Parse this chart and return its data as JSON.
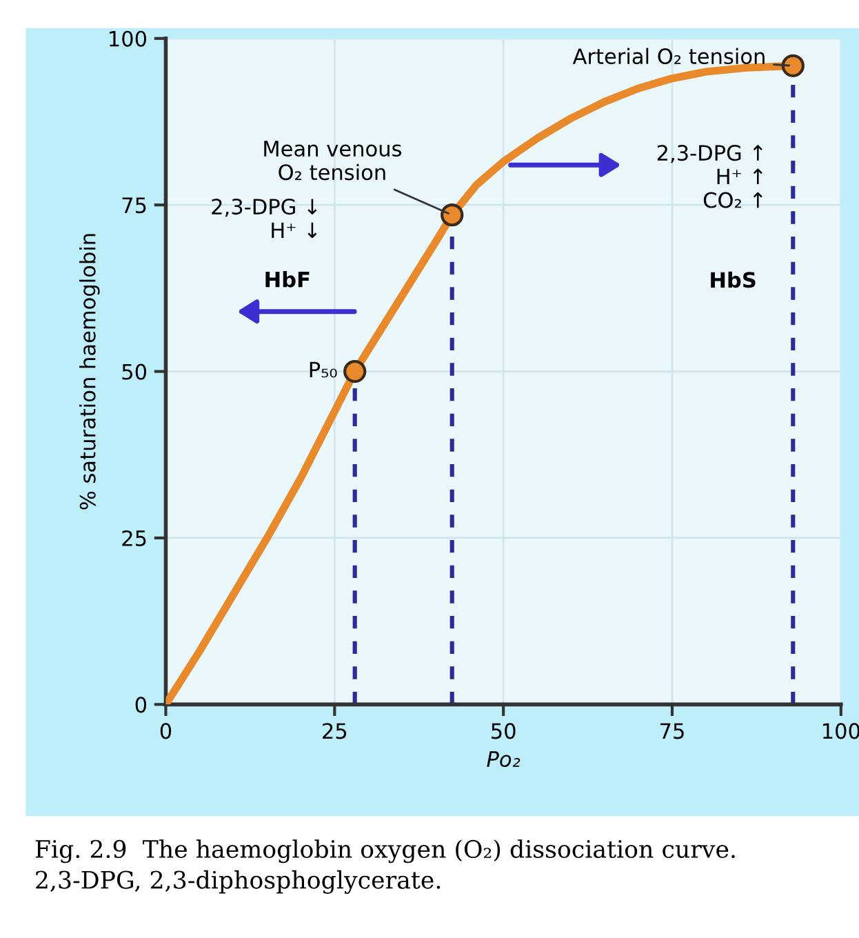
{
  "chart_data": {
    "type": "line",
    "xlabel": "Po₂",
    "ylabel": "% saturation haemoglobin",
    "xlim": [
      0,
      100
    ],
    "ylim": [
      0,
      100
    ],
    "xticks": [
      0,
      25,
      50,
      75,
      100
    ],
    "yticks": [
      0,
      25,
      50,
      75,
      100
    ],
    "grid": true,
    "series": [
      {
        "color": "#e8892b",
        "x": [
          0,
          5,
          10,
          15,
          20,
          25,
          28,
          32,
          36,
          40,
          42.4,
          46,
          50,
          55,
          60,
          65,
          70,
          75,
          80,
          86,
          92.9
        ],
        "values": [
          0,
          8,
          16.5,
          25,
          34,
          44,
          50,
          56.5,
          63,
          69.5,
          73.5,
          78,
          81.5,
          85,
          88,
          90.5,
          92.5,
          94,
          95,
          95.6,
          95.9
        ],
        "marker": "none",
        "line_style": "solid"
      },
      {
        "type": "scatter",
        "color": "#e8892b",
        "x": [
          28,
          42.4,
          92.9
        ],
        "values": [
          50,
          73.5,
          95.9
        ],
        "marker": "circle"
      }
    ],
    "ref_lines": [
      {
        "axis": "x",
        "value": 28,
        "color": "#2b2b9a",
        "line_style": "dashed"
      },
      {
        "axis": "x",
        "value": 42.4,
        "color": "#2b2b9a",
        "line_style": "dashed"
      },
      {
        "axis": "x",
        "value": 92.9,
        "color": "#2b2b9a",
        "line_style": "dashed"
      }
    ],
    "annotations": [
      {
        "text": "Arterial O₂ tension",
        "x": 92.9,
        "y": 95.9
      },
      {
        "text": "Mean venous\nO₂ tension",
        "x": 42.4,
        "y": 73.5
      },
      {
        "text": "P₅₀",
        "x": 28,
        "y": 50
      },
      "2,3-DPG ↓\nH⁺ ↓",
      "HbF",
      "2,3-DPG ↑\nH⁺ ↑\nCO₂ ↑",
      "HbS",
      "Fig. 2.9  The haemoglobin oxygen (O₂) dissociation curve.\n2,3-DPG, 2,3-diphosphoglycerate."
    ]
  }
}
